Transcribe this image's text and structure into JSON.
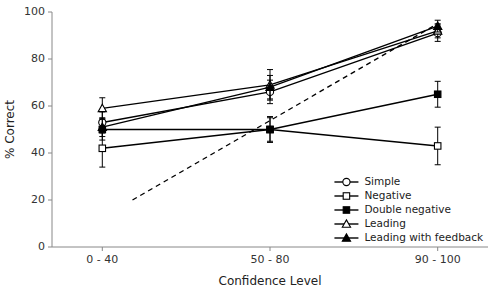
{
  "chart_data": {
    "type": "line",
    "xlabel": "Confidence Level",
    "ylabel": "% Correct",
    "xlim": [
      -0.3,
      2.3
    ],
    "xticks": [
      {
        "value": 0,
        "label": "0 - 40"
      },
      {
        "value": 1,
        "label": "50 - 80"
      },
      {
        "value": 2,
        "label": "90 - 100"
      }
    ],
    "ylim": [
      0,
      100
    ],
    "yticks": [
      0,
      20,
      40,
      60,
      80,
      100
    ],
    "legend": "lower right",
    "series": [
      {
        "x": [
          0.18,
          2.0
        ],
        "values": [
          20,
          95
        ],
        "color": "black",
        "line_style": "dashed"
      },
      {
        "name": "Simple",
        "x": [
          0,
          1,
          2
        ],
        "values": [
          53,
          66,
          91
        ],
        "errors": [
          4.5,
          5.0,
          3.5
        ],
        "color": "black",
        "marker": "open-circle",
        "line_style": "solid"
      },
      {
        "name": "Negative",
        "x": [
          0,
          1,
          2
        ],
        "values": [
          42,
          50,
          43
        ],
        "errors": [
          8.0,
          5.5,
          8.0
        ],
        "color": "black",
        "marker": "open-square",
        "line_style": "solid"
      },
      {
        "name": "Double negative",
        "x": [
          0,
          1,
          2
        ],
        "values": [
          50,
          50,
          65
        ],
        "errors": [
          4.5,
          5.0,
          5.5
        ],
        "color": "black",
        "marker": "filled-square",
        "line_style": "solid"
      },
      {
        "name": "Leading",
        "x": [
          0,
          1,
          2
        ],
        "values": [
          59,
          69,
          92
        ],
        "errors": [
          4.5,
          6.5,
          3.0
        ],
        "color": "black",
        "marker": "open-triangle",
        "line_style": "solid"
      },
      {
        "name": "Leading with feedback",
        "x": [
          0,
          1,
          2
        ],
        "values": [
          51,
          68,
          94
        ],
        "errors": [
          4.0,
          5.0,
          2.5
        ],
        "color": "black",
        "marker": "filled-triangle",
        "line_style": "solid"
      }
    ]
  }
}
